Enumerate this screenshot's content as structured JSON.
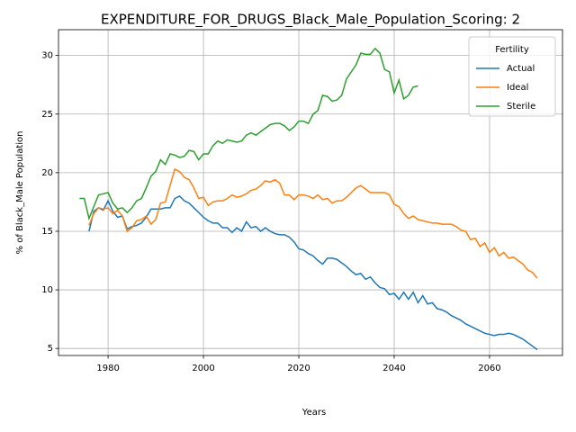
{
  "chart_data": {
    "type": "line",
    "title": "EXPENDITURE_FOR_DRUGS_Black_Male_Population_Scoring: 2",
    "x_label": "Years",
    "y_label": "% of Black_Male Population",
    "legend_title": "Fertility",
    "legend_position": "upper right",
    "grid": true,
    "xlim": [
      1969.6,
      2075.3
    ],
    "ylim": [
      4.4,
      32.2
    ],
    "xticks": [
      1980,
      2000,
      2020,
      2040,
      2060
    ],
    "yticks": [
      5,
      10,
      15,
      20,
      25,
      30
    ],
    "x": [
      1974,
      1975,
      1976,
      1977,
      1978,
      1979,
      1980,
      1981,
      1982,
      1983,
      1984,
      1985,
      1986,
      1987,
      1988,
      1989,
      1990,
      1991,
      1992,
      1993,
      1994,
      1995,
      1996,
      1997,
      1998,
      1999,
      2000,
      2001,
      2002,
      2003,
      2004,
      2005,
      2006,
      2007,
      2008,
      2009,
      2010,
      2011,
      2012,
      2013,
      2014,
      2015,
      2016,
      2017,
      2018,
      2019,
      2020,
      2021,
      2022,
      2023,
      2024,
      2025,
      2026,
      2027,
      2028,
      2029,
      2030,
      2031,
      2032,
      2033,
      2034,
      2035,
      2036,
      2037,
      2038,
      2039,
      2040,
      2041,
      2042,
      2043,
      2044,
      2045,
      2046,
      2047,
      2048,
      2049,
      2050,
      2051,
      2052,
      2053,
      2054,
      2055,
      2056,
      2057,
      2058,
      2059,
      2060,
      2061,
      2062,
      2063,
      2064,
      2065,
      2066,
      2067,
      2068,
      2069,
      2070
    ],
    "series": [
      {
        "name": "Actual",
        "color": "#1f77b4",
        "values": [
          null,
          null,
          15.0,
          16.7,
          17.0,
          16.8,
          17.6,
          16.7,
          16.2,
          16.3,
          15.2,
          15.4,
          15.5,
          15.7,
          16.2,
          16.9,
          16.9,
          16.9,
          17.0,
          17.0,
          17.8,
          18.0,
          17.6,
          17.4,
          17.0,
          16.6,
          16.2,
          15.9,
          15.7,
          15.7,
          15.3,
          15.3,
          14.9,
          15.3,
          15.0,
          15.8,
          15.3,
          15.4,
          15.0,
          15.3,
          15.0,
          14.8,
          14.7,
          14.7,
          14.5,
          14.1,
          13.5,
          13.4,
          13.1,
          12.9,
          12.5,
          12.2,
          12.7,
          12.7,
          12.6,
          12.3,
          12.0,
          11.6,
          11.3,
          11.4,
          10.9,
          11.1,
          10.6,
          10.2,
          10.1,
          9.6,
          9.7,
          9.2,
          9.8,
          9.2,
          9.8,
          8.9,
          9.5,
          8.8,
          8.9,
          8.4,
          8.3,
          8.1,
          7.8,
          7.6,
          7.4,
          7.1,
          6.9,
          6.7,
          6.5,
          6.3,
          6.2,
          6.1,
          6.2,
          6.2,
          6.3,
          6.2,
          6.0,
          5.8,
          5.5,
          5.2,
          4.9
        ]
      },
      {
        "name": "Ideal",
        "color": "#ff7f0e",
        "values": [
          null,
          null,
          15.5,
          16.5,
          17.0,
          16.9,
          17.0,
          16.5,
          16.8,
          16.3,
          15.0,
          15.3,
          15.9,
          16.0,
          16.3,
          15.6,
          16.0,
          17.4,
          17.5,
          18.9,
          20.3,
          20.1,
          19.6,
          19.4,
          18.7,
          17.8,
          17.9,
          17.2,
          17.5,
          17.6,
          17.6,
          17.8,
          18.1,
          17.9,
          18.0,
          18.2,
          18.5,
          18.6,
          18.9,
          19.3,
          19.2,
          19.4,
          19.1,
          18.1,
          18.1,
          17.7,
          18.1,
          18.1,
          18.0,
          17.8,
          18.1,
          17.7,
          17.8,
          17.4,
          17.6,
          17.6,
          17.9,
          18.3,
          18.7,
          18.9,
          18.6,
          18.3,
          18.3,
          18.3,
          18.3,
          18.1,
          17.3,
          17.1,
          16.5,
          16.1,
          16.3,
          16.0,
          15.9,
          15.8,
          15.7,
          15.7,
          15.6,
          15.6,
          15.6,
          15.4,
          15.1,
          15.0,
          14.3,
          14.4,
          13.7,
          14.0,
          13.2,
          13.6,
          12.9,
          13.2,
          12.7,
          12.8,
          12.5,
          12.2,
          11.7,
          11.5,
          11.0
        ]
      },
      {
        "name": "Sterile",
        "color": "#2ca02c",
        "values": [
          17.8,
          17.8,
          16.1,
          17.1,
          18.1,
          18.2,
          18.3,
          17.4,
          16.9,
          17.0,
          16.6,
          17.0,
          17.6,
          17.8,
          18.7,
          19.7,
          20.1,
          21.1,
          20.7,
          21.6,
          21.5,
          21.3,
          21.4,
          21.9,
          21.8,
          21.1,
          21.6,
          21.6,
          22.3,
          22.7,
          22.5,
          22.8,
          22.7,
          22.6,
          22.7,
          23.2,
          23.4,
          23.2,
          23.5,
          23.8,
          24.1,
          24.2,
          24.2,
          24.0,
          23.6,
          23.9,
          24.4,
          24.4,
          24.2,
          25.0,
          25.3,
          26.6,
          26.5,
          26.1,
          26.2,
          26.6,
          28.0,
          28.6,
          29.2,
          30.2,
          30.1,
          30.1,
          30.6,
          30.2,
          28.8,
          28.6,
          26.8,
          27.9,
          26.3,
          26.6,
          27.3,
          27.4,
          null,
          null,
          null,
          null,
          null,
          null,
          null,
          null,
          null,
          null,
          null,
          null,
          null,
          null,
          null,
          null,
          null,
          null,
          null,
          null,
          null,
          null,
          null,
          null,
          null
        ]
      }
    ]
  }
}
